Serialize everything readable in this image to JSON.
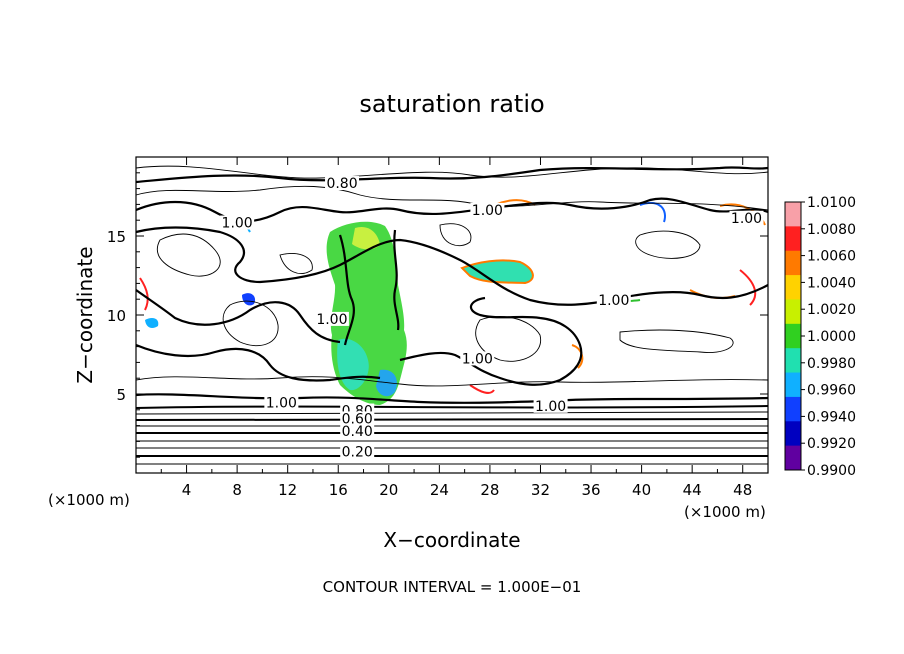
{
  "chart_data": {
    "type": "heatmap",
    "title": "saturation ratio",
    "xlabel": "X−coordinate",
    "ylabel": "Z−coordinate",
    "x_unit_left": "(×1000 m)",
    "x_unit_right": "(×1000 m)",
    "xlim": [
      0,
      50
    ],
    "ylim": [
      0,
      20
    ],
    "xticks": [
      "4",
      "8",
      "12",
      "16",
      "20",
      "24",
      "28",
      "32",
      "36",
      "40",
      "44",
      "48"
    ],
    "yticks": [
      "5",
      "10",
      "15"
    ],
    "footer": "CONTOUR INTERVAL = 1.000E−01",
    "colorbar": {
      "range": [
        0.99,
        1.01
      ],
      "labels": [
        "1.0100",
        "1.0080",
        "1.0060",
        "1.0040",
        "1.0020",
        "1.0000",
        "0.9980",
        "0.9960",
        "0.9940",
        "0.9920",
        "0.9900"
      ],
      "colors": [
        "#f8a0a8",
        "#ff2020",
        "#ff7a00",
        "#ffd200",
        "#c8f000",
        "#30d020",
        "#20e0b0",
        "#10b0ff",
        "#1040ff",
        "#0000c0",
        "#6000a0"
      ]
    },
    "contour_labels": [
      {
        "text": "0.80",
        "x": 16.3,
        "z": 18.1
      },
      {
        "text": "1.00",
        "x": 27.8,
        "z": 16.4
      },
      {
        "text": "1.00",
        "x": 8.0,
        "z": 15.6
      },
      {
        "text": "1.00",
        "x": 48.3,
        "z": 15.9
      },
      {
        "text": "1.00",
        "x": 37.8,
        "z": 10.7
      },
      {
        "text": "1.00",
        "x": 15.5,
        "z": 9.5
      },
      {
        "text": "1.00",
        "x": 27.0,
        "z": 7.0
      },
      {
        "text": "1.00",
        "x": 11.5,
        "z": 4.2
      },
      {
        "text": "1.00",
        "x": 32.8,
        "z": 4.0
      },
      {
        "text": "0.80",
        "x": 17.5,
        "z": 3.7
      },
      {
        "text": "0.60",
        "x": 17.5,
        "z": 3.2
      },
      {
        "text": "0.40",
        "x": 17.5,
        "z": 2.4
      },
      {
        "text": "0.20",
        "x": 17.5,
        "z": 1.1
      }
    ]
  }
}
